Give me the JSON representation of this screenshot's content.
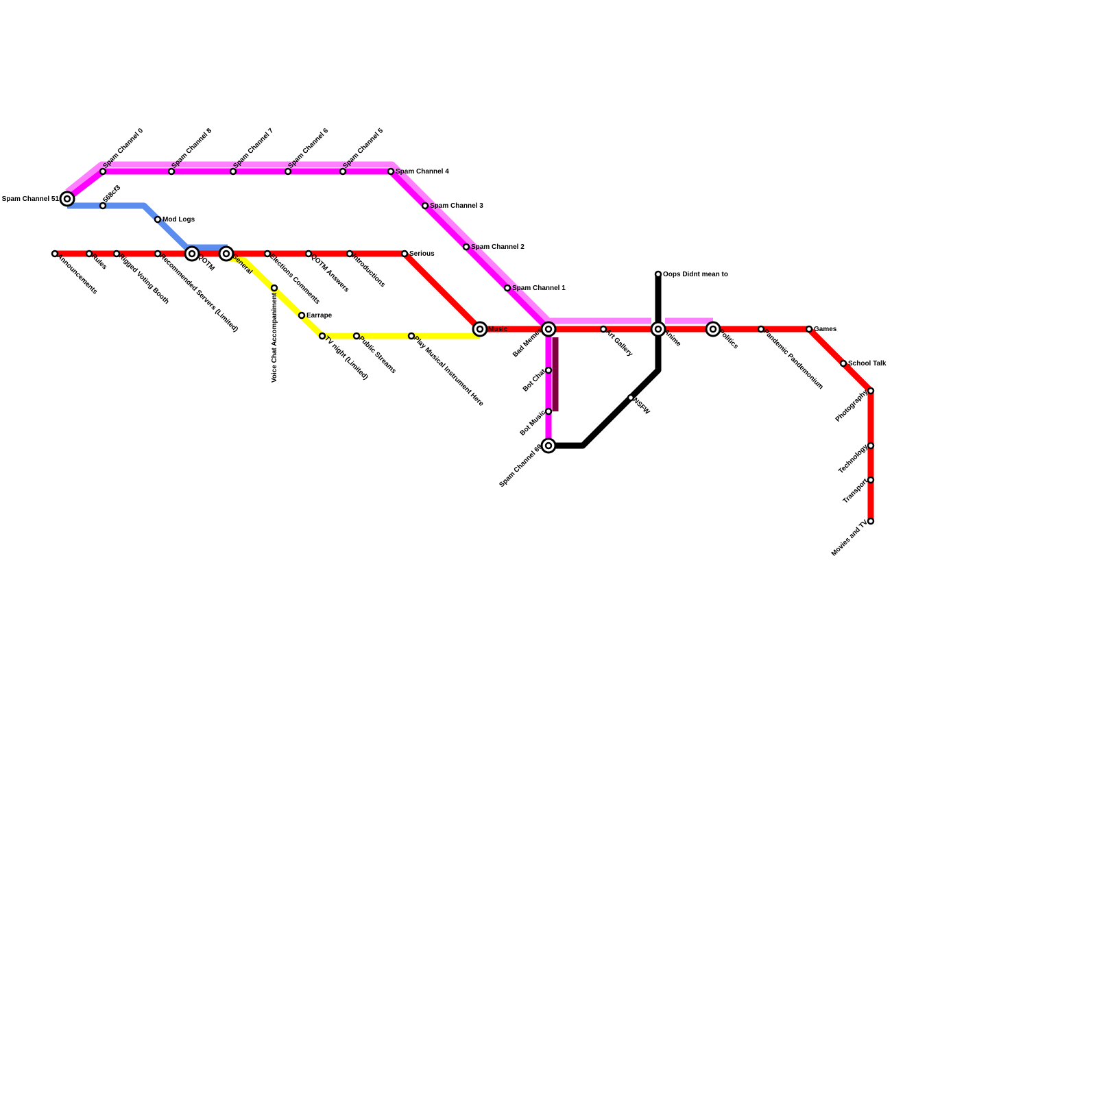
{
  "colors": {
    "red_line": "#ff0000",
    "magenta_line": "#ff00ff",
    "pink_line": "#ff80ff",
    "blue_line": "#5b8def",
    "yellow_line": "#ffff00",
    "black_line": "#000000",
    "dark_purple_line": "#80003f"
  },
  "stations": [
    "Spam Channel 51",
    "Spam Channel 0",
    "Spam Channel 8",
    "Spam Channel 7",
    "Spam Channel 6",
    "Spam Channel 5",
    "Spam Channel 4",
    "Spam Channel 3",
    "Spam Channel 2",
    "Spam Channel 1",
    "568cf3",
    "Mod Logs",
    "Announcements",
    "Rules",
    "Rigged Voting Booth",
    "Recommended Servers (Limited)",
    "QOTM",
    "General",
    "Elections Comments",
    "QOTM Answers",
    "Introductions",
    "Serious",
    "Voice Chat Accompaniment",
    "Earrape",
    "TV night (Limited)",
    "Public Streams",
    "Play Musical Instrument Here",
    "Music",
    "Bad Memes",
    "Art Gallery",
    "Anime",
    "Politics",
    "Pandemic Pandemonium",
    "Games",
    "School Talk",
    "Photography",
    "Technology",
    "Transport",
    "Movies and TV",
    "Bot Chat",
    "Bot Music",
    "Spam Channel 69",
    "NSFW",
    "Oops Didnt mean to"
  ]
}
